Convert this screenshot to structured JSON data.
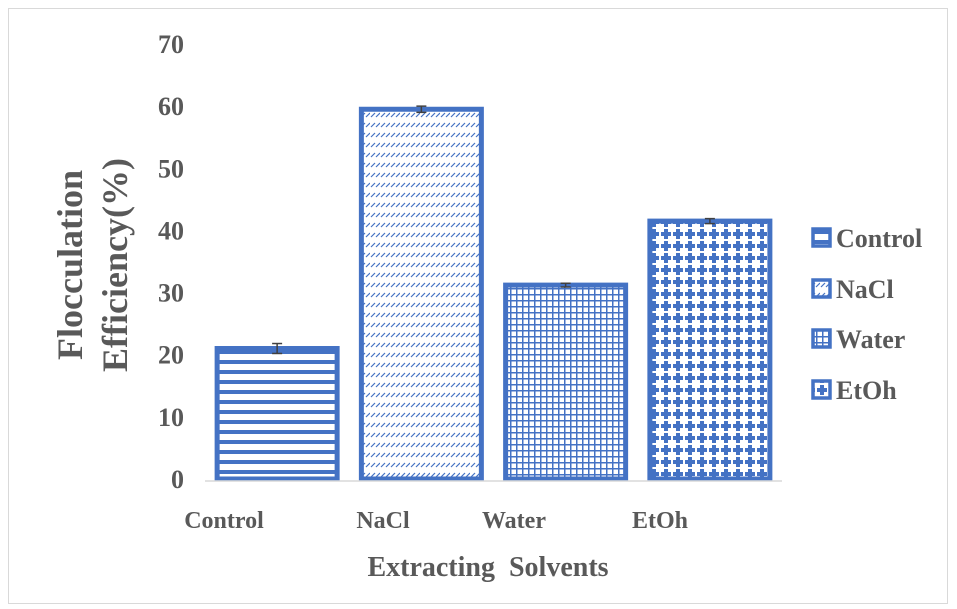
{
  "chart_data": {
    "type": "bar",
    "categories": [
      "Control",
      "NaCl",
      "Water",
      "EtOh"
    ],
    "values": [
      21,
      59.5,
      31.2,
      41.5
    ],
    "errors": [
      0.8,
      0.5,
      0.3,
      0.4
    ],
    "xlabel": "Extracting  Solvents",
    "ylabel": [
      "Flocculation",
      "Efficiency(%)"
    ],
    "ylim": [
      0,
      70
    ],
    "yticks": [
      0,
      10,
      20,
      30,
      40,
      50,
      60,
      70
    ],
    "grid": false,
    "legend": {
      "placement": "right",
      "entries": [
        "Control",
        "NaCl",
        "Water",
        "EtOh"
      ]
    },
    "bar_color": "#4472c4",
    "patterns": [
      "horizontal-lines",
      "diagonal-dashes",
      "grid",
      "crosses"
    ]
  }
}
